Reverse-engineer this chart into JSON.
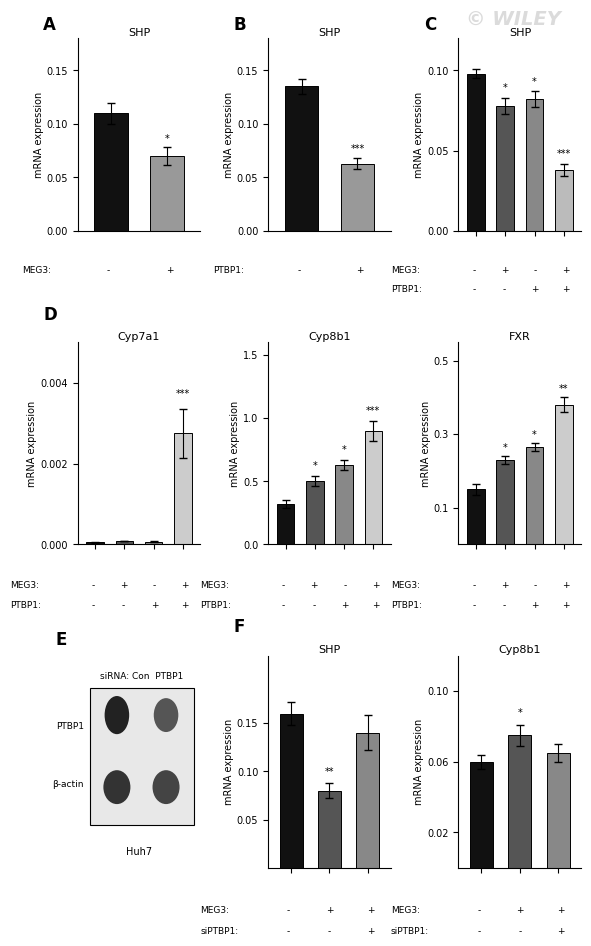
{
  "panel_A": {
    "title": "SHP",
    "label": "A",
    "bars": [
      0.11,
      0.07
    ],
    "errors": [
      0.01,
      0.008
    ],
    "colors": [
      "#111111",
      "#999999"
    ],
    "ylim": [
      0,
      0.18
    ],
    "yticks": [
      0.0,
      0.05,
      0.1,
      0.15
    ],
    "xlabel_rows": [
      "MEG3:",
      ""
    ],
    "xlabel_vals": [
      "-  +",
      ""
    ],
    "sig": [
      "",
      "*"
    ],
    "ylabel": "mRNA expression"
  },
  "panel_B": {
    "title": "SHP",
    "label": "B",
    "bars": [
      0.135,
      0.063
    ],
    "errors": [
      0.007,
      0.005
    ],
    "colors": [
      "#111111",
      "#999999"
    ],
    "ylim": [
      0,
      0.18
    ],
    "yticks": [
      0.0,
      0.05,
      0.1,
      0.15
    ],
    "xlabel_rows": [
      "PTBP1:",
      ""
    ],
    "xlabel_vals": [
      "-  +",
      ""
    ],
    "sig": [
      "",
      "***"
    ],
    "ylabel": "mRNA expression"
  },
  "panel_C": {
    "title": "SHP",
    "label": "C",
    "bars": [
      0.098,
      0.078,
      0.082,
      0.038
    ],
    "errors": [
      0.003,
      0.005,
      0.005,
      0.004
    ],
    "colors": [
      "#111111",
      "#555555",
      "#888888",
      "#bbbbbb"
    ],
    "ylim": [
      0,
      0.12
    ],
    "yticks": [
      0.0,
      0.05,
      0.1
    ],
    "sig": [
      "",
      "*",
      "*",
      "***"
    ],
    "ylabel": "mRNA expression",
    "xlabel_row1": [
      "MEG3:",
      "-",
      "+",
      "-",
      "+"
    ],
    "xlabel_row2": [
      "PTBP1:",
      "-",
      "-",
      "+",
      "+"
    ]
  },
  "panel_D1": {
    "title": "Cyp7a1",
    "bars": [
      5e-05,
      8e-05,
      7e-05,
      0.00275
    ],
    "errors": [
      5e-06,
      5e-06,
      5e-06,
      0.0006
    ],
    "colors": [
      "#111111",
      "#555555",
      "#888888",
      "#cccccc"
    ],
    "ylim": [
      0,
      0.005
    ],
    "yticks": [
      0.0,
      0.002,
      0.004
    ],
    "sig": [
      "",
      "",
      "",
      "***"
    ],
    "ylabel": "mRNA expression",
    "xlabel_row1": [
      "MEG3:",
      "-",
      "+",
      "-",
      "+"
    ],
    "xlabel_row2": [
      "PTBP1:",
      "-",
      "-",
      "+",
      "+"
    ]
  },
  "panel_D2": {
    "title": "Cyp8b1",
    "bars": [
      0.32,
      0.5,
      0.63,
      0.9
    ],
    "errors": [
      0.03,
      0.04,
      0.04,
      0.08
    ],
    "colors": [
      "#111111",
      "#555555",
      "#888888",
      "#cccccc"
    ],
    "ylim": [
      0,
      1.6
    ],
    "yticks": [
      0.0,
      0.5,
      1.0,
      1.5
    ],
    "sig": [
      "",
      "*",
      "*",
      "***"
    ],
    "ylabel": "mRNA expression",
    "xlabel_row1": [
      "MEG3:",
      "-",
      "+",
      "-",
      "+"
    ],
    "xlabel_row2": [
      "PTBP1:",
      "-",
      "-",
      "+",
      "+"
    ]
  },
  "panel_D3": {
    "title": "FXR",
    "bars": [
      0.15,
      0.23,
      0.265,
      0.38
    ],
    "errors": [
      0.015,
      0.01,
      0.01,
      0.02
    ],
    "colors": [
      "#111111",
      "#555555",
      "#888888",
      "#cccccc"
    ],
    "ylim": [
      0.0,
      0.55
    ],
    "yticks": [
      0.1,
      0.3,
      0.5
    ],
    "sig": [
      "",
      "*",
      "*",
      "**"
    ],
    "ylabel": "mRNA expression",
    "xlabel_row1": [
      "MEG3:",
      "-",
      "+",
      "-",
      "+"
    ],
    "xlabel_row2": [
      "PTBP1:",
      "-",
      "-",
      "+",
      "+"
    ]
  },
  "panel_F1": {
    "title": "SHP",
    "bars": [
      0.16,
      0.08,
      0.14
    ],
    "errors": [
      0.012,
      0.008,
      0.018
    ],
    "colors": [
      "#111111",
      "#555555",
      "#888888"
    ],
    "ylim": [
      0,
      0.22
    ],
    "yticks": [
      0.05,
      0.1,
      0.15
    ],
    "sig": [
      "",
      "**",
      ""
    ],
    "ylabel": "mRNA expression",
    "xlabel_row1": [
      "MEG3:",
      "-",
      "+",
      "+"
    ],
    "xlabel_row2": [
      "siPTBP1:",
      "-",
      "-",
      "+"
    ]
  },
  "panel_F2": {
    "title": "Cyp8b1",
    "bars": [
      0.06,
      0.075,
      0.065
    ],
    "errors": [
      0.004,
      0.006,
      0.005
    ],
    "colors": [
      "#111111",
      "#555555",
      "#888888"
    ],
    "ylim": [
      0.0,
      0.12
    ],
    "yticks": [
      0.02,
      0.06,
      0.1
    ],
    "sig": [
      "",
      "*",
      ""
    ],
    "ylabel": "mRNA expression",
    "xlabel_row1": [
      "MEG3:",
      "-",
      "+",
      "+"
    ],
    "xlabel_row2": [
      "siPTBP1:",
      "-",
      "-",
      "+"
    ]
  },
  "watermark": "© WILEY",
  "fig_bgcolor": "#ffffff"
}
